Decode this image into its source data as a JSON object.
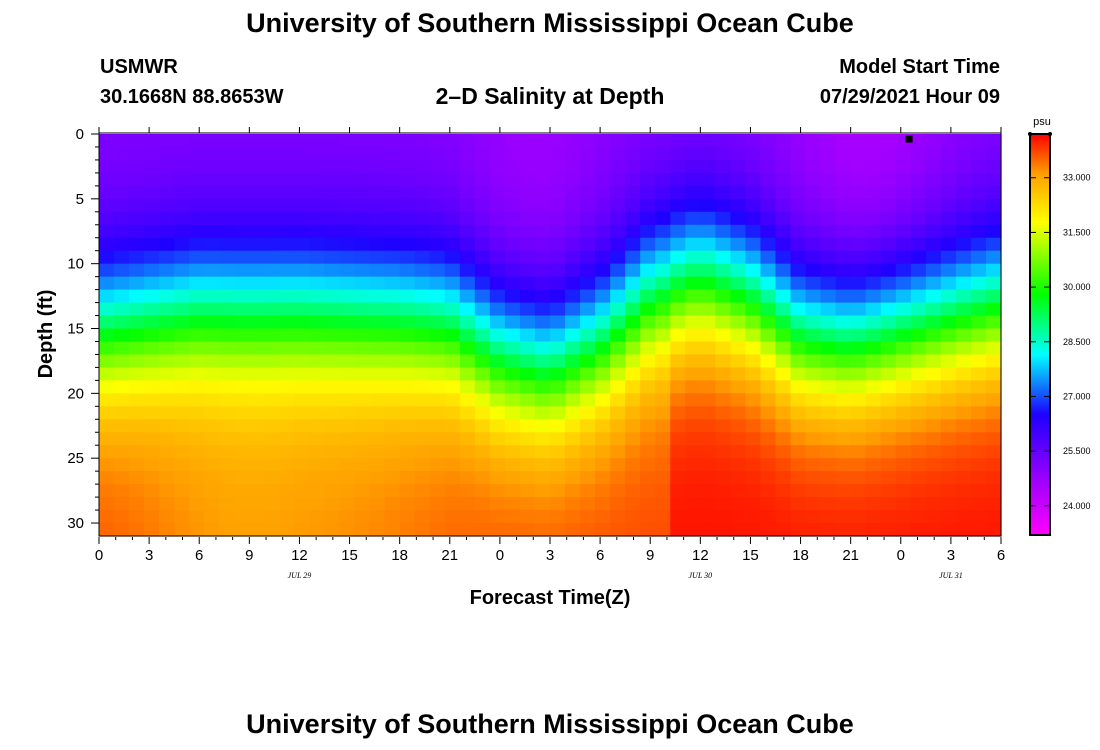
{
  "page": {
    "title_top": "University of Southern Mississippi Ocean Cube",
    "title_bottom": "University of Southern Mississippi Ocean Cube",
    "station_name": "USMWR",
    "station_coords": "30.1668N  88.8653W",
    "model_start_label": "Model Start Time",
    "model_start_value": "07/29/2021 Hour 09"
  },
  "chart_data": {
    "type": "heatmap",
    "title": "2–D Salinity at Depth",
    "xlabel": "Forecast Time(Z)",
    "ylabel": "Depth (ft)",
    "x_range_hours": [
      0,
      54
    ],
    "x_ticks": [
      "0",
      "3",
      "6",
      "9",
      "12",
      "15",
      "18",
      "21",
      "0",
      "3",
      "6",
      "9",
      "12",
      "15",
      "18",
      "21",
      "0",
      "3",
      "6"
    ],
    "date_labels": [
      {
        "text": "JUL 29",
        "hour": 12
      },
      {
        "text": "JUL 30",
        "hour": 36
      },
      {
        "text": "JUL 31",
        "hour": 51
      }
    ],
    "y_ticks": [
      0,
      5,
      10,
      15,
      20,
      25,
      30
    ],
    "y_range_ft": [
      0,
      31
    ],
    "colorbar": {
      "unit": "psu",
      "min": 23.2,
      "max": 34.2,
      "ticks": [
        "33.000",
        "31.500",
        "30.000",
        "28.500",
        "27.000",
        "25.500",
        "24.000"
      ],
      "tick_values": [
        33.0,
        31.5,
        30.0,
        28.5,
        27.0,
        25.5,
        24.0
      ]
    },
    "surface_salinity_psu": 25.0,
    "bottom_salinity_psu": 33.7,
    "halocline_depth_ft_by_hour": [
      {
        "hour": 0,
        "depth": 9
      },
      {
        "hour": 6,
        "depth": 7.5
      },
      {
        "hour": 12,
        "depth": 7.5
      },
      {
        "hour": 18,
        "depth": 8
      },
      {
        "hour": 21,
        "depth": 8.5
      },
      {
        "hour": 24,
        "depth": 11
      },
      {
        "hour": 27,
        "depth": 12
      },
      {
        "hour": 30,
        "depth": 10
      },
      {
        "hour": 33,
        "depth": 6.5
      },
      {
        "hour": 36,
        "depth": 5
      },
      {
        "hour": 39,
        "depth": 6.5
      },
      {
        "hour": 42,
        "depth": 9.5
      },
      {
        "hour": 45,
        "depth": 10
      },
      {
        "hour": 48,
        "depth": 9
      },
      {
        "hour": 51,
        "depth": 8
      },
      {
        "hour": 54,
        "depth": 7
      }
    ],
    "marker": {
      "hour": 48.5,
      "depth": 0.2
    }
  }
}
